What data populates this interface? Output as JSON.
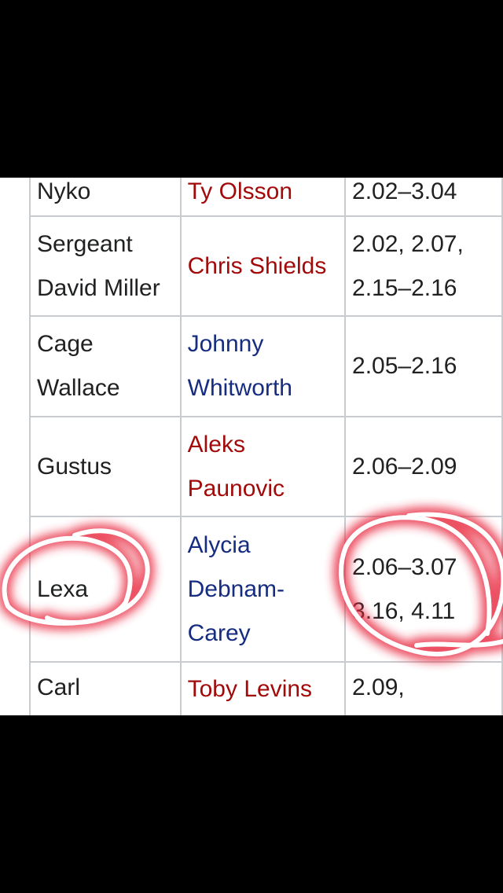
{
  "table": {
    "rows": [
      {
        "character": [
          "Nyko"
        ],
        "actor": [
          "Ty Olsson"
        ],
        "actor_link_color": "red",
        "episodes": [
          "2.02–3.04"
        ]
      },
      {
        "character": [
          "Sergeant",
          "David Miller"
        ],
        "actor": [
          "Chris Shields"
        ],
        "actor_link_color": "red",
        "episodes": [
          "2.02, 2.07,",
          "2.15–2.16"
        ]
      },
      {
        "character": [
          "Cage",
          "Wallace"
        ],
        "actor": [
          "Johnny",
          "Whitworth"
        ],
        "actor_link_color": "blue",
        "episodes": [
          "2.05–2.16"
        ]
      },
      {
        "character": [
          "Gustus"
        ],
        "actor": [
          "Aleks",
          "Paunovic"
        ],
        "actor_link_color": "red",
        "episodes": [
          "2.06–2.09"
        ]
      },
      {
        "character": [
          "Lexa"
        ],
        "actor": [
          "Alycia",
          "Debnam-",
          "Carey"
        ],
        "actor_link_color": "blue",
        "episodes": [
          "2.06–3.07",
          "3.16, 4.11"
        ],
        "highlighted": true
      },
      {
        "character": [
          "Carl"
        ],
        "actor": [
          "Toby Levins"
        ],
        "actor_link_color": "red",
        "episodes": [
          "2.09,"
        ]
      }
    ]
  },
  "colors": {
    "red_link": "#a20a0a",
    "blue_link": "#152c80",
    "annotation_glow": "#e8283c",
    "annotation_stroke": "#ffffff"
  }
}
